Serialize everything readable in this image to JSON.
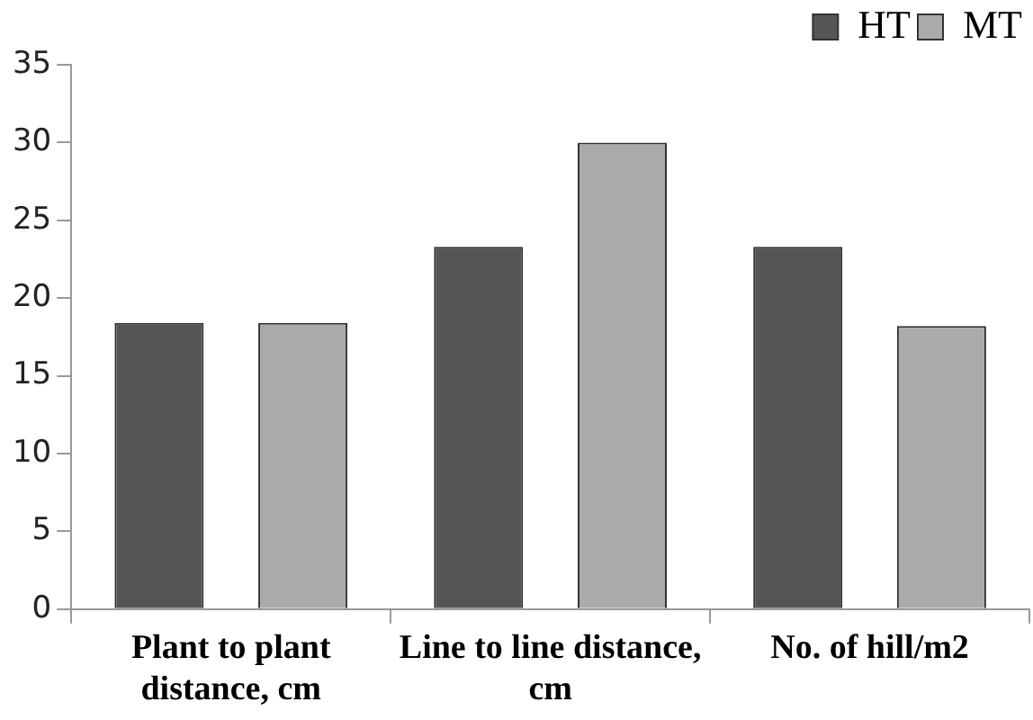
{
  "chart_data": {
    "type": "bar",
    "categories": [
      "Plant to plant distance, cm",
      "Line to line distance, cm",
      "No. of hill/m2"
    ],
    "series": [
      {
        "name": "HT",
        "color": "#555555",
        "values": [
          18.4,
          23.3,
          23.3
        ]
      },
      {
        "name": "MT",
        "color": "#aaaaaa",
        "values": [
          18.4,
          30,
          18.2
        ]
      }
    ],
    "ylim": [
      0,
      35
    ],
    "yticks": [
      0,
      5,
      10,
      15,
      20,
      25,
      30,
      35
    ],
    "grid": false,
    "legend": "top right"
  }
}
